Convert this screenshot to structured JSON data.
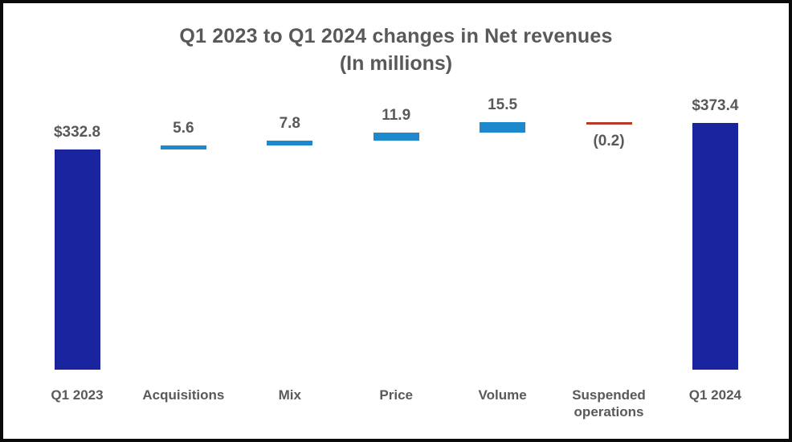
{
  "title": "Q1 2023 to Q1 2024 changes in Net revenues",
  "subtitle": "(In millions)",
  "chart_data": {
    "type": "bar",
    "subtype": "waterfall",
    "title": "Q1 2023 to Q1 2024 changes in Net revenues",
    "subtitle": "(In millions)",
    "categories": [
      "Q1 2023",
      "Acquisitions",
      "Mix",
      "Price",
      "Volume",
      "Suspended operations",
      "Q1 2024"
    ],
    "points": [
      {
        "label": "Q1 2023",
        "value": 332.8,
        "display": "$332.8",
        "role": "total",
        "color": "#1a249e",
        "label_position": "above"
      },
      {
        "label": "Acquisitions",
        "value": 5.6,
        "display": "5.6",
        "role": "increase",
        "color": "#1e88cc",
        "label_position": "above"
      },
      {
        "label": "Mix",
        "value": 7.8,
        "display": "7.8",
        "role": "increase",
        "color": "#1e88cc",
        "label_position": "above"
      },
      {
        "label": "Price",
        "value": 11.9,
        "display": "11.9",
        "role": "increase",
        "color": "#1e88cc",
        "label_position": "above"
      },
      {
        "label": "Volume",
        "value": 15.5,
        "display": "15.5",
        "role": "increase",
        "color": "#1e88cc",
        "label_position": "above"
      },
      {
        "label": "Suspended operations",
        "value": -0.2,
        "display": "(0.2)",
        "role": "decrease",
        "color": "#b53b26",
        "label_position": "below"
      },
      {
        "label": "Q1 2024",
        "value": 373.4,
        "display": "$373.4",
        "role": "total",
        "color": "#1a249e",
        "label_position": "above"
      }
    ],
    "cumulative_totals": [
      332.8,
      338.4,
      346.2,
      358.1,
      373.6,
      373.4,
      373.4
    ],
    "ylim": [
      0,
      420
    ],
    "xlabel": "",
    "ylabel": "",
    "grid": false,
    "legend": false,
    "axis_ticks_visible": false,
    "colors": {
      "total": "#1a249e",
      "increase": "#1e88cc",
      "decrease": "#b53b26",
      "text": "#595959",
      "frame_border": "#0a0a0a",
      "background": "#ffffff"
    }
  }
}
